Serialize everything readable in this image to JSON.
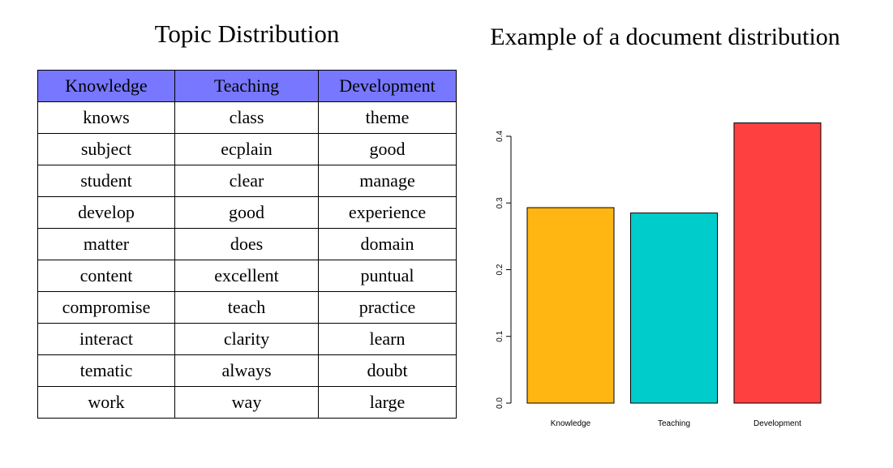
{
  "table": {
    "title": "Topic Distribution",
    "headers": [
      "Knowledge",
      "Teaching",
      "Development"
    ],
    "rows": [
      [
        "knows",
        "class",
        "theme"
      ],
      [
        "subject",
        "ecplain",
        "good"
      ],
      [
        "student",
        "clear",
        "manage"
      ],
      [
        "develop",
        "good",
        "experience"
      ],
      [
        "matter",
        "does",
        "domain"
      ],
      [
        "content",
        "excellent",
        "puntual"
      ],
      [
        "compromise",
        "teach",
        "practice"
      ],
      [
        "interact",
        "clarity",
        "learn"
      ],
      [
        "tematic",
        "always",
        "doubt"
      ],
      [
        "work",
        "way",
        "large"
      ]
    ],
    "header_color": "#7777ff"
  },
  "chart_data": {
    "type": "bar",
    "title": "Example of a document distribution",
    "categories": [
      "Knowledge",
      "Teaching",
      "Development"
    ],
    "values": [
      0.293,
      0.285,
      0.42
    ],
    "colors": [
      "#ffb612",
      "#00cccc",
      "#ff4040"
    ],
    "ylim": [
      0,
      0.4
    ],
    "yticks": [
      "0.0",
      "0.1",
      "0.2",
      "0.3",
      "0.4"
    ],
    "xlabel": "",
    "ylabel": ""
  }
}
